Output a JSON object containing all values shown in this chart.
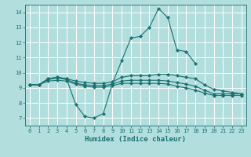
{
  "xlabel": "Humidex (Indice chaleur)",
  "background_color": "#b2dede",
  "grid_color": "#ffffff",
  "line_color": "#1a7070",
  "xlim": [
    -0.5,
    23.5
  ],
  "ylim": [
    6.5,
    14.5
  ],
  "xticks": [
    0,
    1,
    2,
    3,
    4,
    5,
    6,
    7,
    8,
    9,
    10,
    11,
    12,
    13,
    14,
    15,
    16,
    17,
    18,
    19,
    20,
    21,
    22,
    23
  ],
  "yticks": [
    7,
    8,
    9,
    10,
    11,
    12,
    13,
    14
  ],
  "series": [
    {
      "x": [
        0,
        1,
        2,
        3,
        4,
        5,
        6,
        7,
        8,
        9,
        10,
        11,
        12,
        13,
        14,
        15,
        16,
        17,
        18
      ],
      "y": [
        9.2,
        9.2,
        9.6,
        9.7,
        9.6,
        7.9,
        7.1,
        7.0,
        7.3,
        9.3,
        10.8,
        12.3,
        12.4,
        13.0,
        14.25,
        13.65,
        11.5,
        11.4,
        10.6
      ]
    },
    {
      "x": [
        0,
        1,
        2,
        3,
        4,
        5,
        6,
        7,
        8,
        9,
        10,
        11,
        12,
        13,
        14,
        15,
        16,
        17,
        18,
        19,
        20,
        21,
        22,
        23
      ],
      "y": [
        9.2,
        9.2,
        9.6,
        9.7,
        9.6,
        9.45,
        9.35,
        9.3,
        9.3,
        9.4,
        9.7,
        9.8,
        9.8,
        9.8,
        9.9,
        9.9,
        9.8,
        9.7,
        9.6,
        9.2,
        8.9,
        8.8,
        8.7,
        8.6
      ]
    },
    {
      "x": [
        0,
        1,
        2,
        3,
        4,
        5,
        6,
        7,
        8,
        9,
        10,
        11,
        12,
        13,
        14,
        15,
        16,
        17,
        18,
        19,
        20,
        21,
        22,
        23
      ],
      "y": [
        9.2,
        9.2,
        9.55,
        9.65,
        9.55,
        9.3,
        9.2,
        9.15,
        9.15,
        9.25,
        9.45,
        9.5,
        9.5,
        9.5,
        9.5,
        9.45,
        9.35,
        9.25,
        9.1,
        8.85,
        8.6,
        8.6,
        8.6,
        8.6
      ]
    },
    {
      "x": [
        0,
        1,
        2,
        3,
        4,
        5,
        6,
        7,
        8,
        9,
        10,
        11,
        12,
        13,
        14,
        15,
        16,
        17,
        18,
        19,
        20,
        21,
        22,
        23
      ],
      "y": [
        9.2,
        9.2,
        9.45,
        9.5,
        9.45,
        9.25,
        9.1,
        9.05,
        9.05,
        9.15,
        9.3,
        9.3,
        9.3,
        9.3,
        9.3,
        9.25,
        9.1,
        9.0,
        8.85,
        8.65,
        8.5,
        8.5,
        8.5,
        8.5
      ]
    }
  ]
}
